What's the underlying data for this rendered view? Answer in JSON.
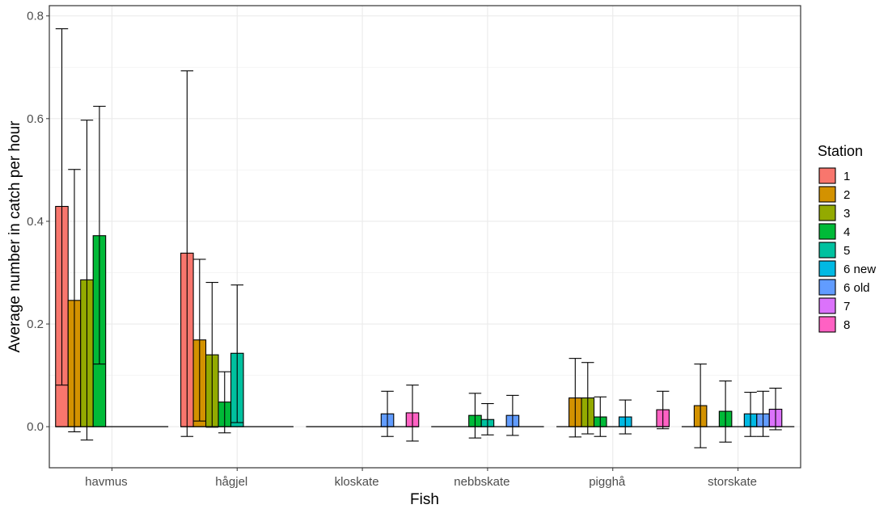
{
  "chart_data": {
    "type": "bar",
    "xlabel": "Fish",
    "ylabel": "Average number in catch per hour",
    "ylim": [
      -0.08,
      0.82
    ],
    "yticks": [
      "0.0",
      "0.2",
      "0.4",
      "0.6",
      "0.8"
    ],
    "ytick_values": [
      0,
      0.2,
      0.4,
      0.6,
      0.8
    ],
    "grid": true,
    "legend": {
      "title": "Station",
      "position": "right"
    },
    "categories": [
      "havmus",
      "hågjel",
      "kloskate",
      "nebbskate",
      "pigghå",
      "storskate"
    ],
    "series": [
      {
        "name": "1",
        "color": "#F8766D",
        "values": [
          0.429,
          0.338,
          0,
          0,
          0,
          0
        ],
        "lower": [
          0.081,
          -0.019,
          null,
          null,
          null,
          null
        ],
        "upper": [
          0.775,
          0.693,
          null,
          null,
          null,
          null
        ]
      },
      {
        "name": "2",
        "color": "#D39200",
        "values": [
          0.246,
          0.169,
          0,
          0,
          0.056,
          0.041
        ],
        "lower": [
          -0.01,
          0.011,
          null,
          null,
          -0.02,
          -0.041
        ],
        "upper": [
          0.501,
          0.326,
          null,
          null,
          0.133,
          0.122
        ]
      },
      {
        "name": "3",
        "color": "#93AA00",
        "values": [
          0.286,
          0.14,
          0,
          0,
          0.056,
          0
        ],
        "lower": [
          -0.026,
          -0.001,
          null,
          null,
          -0.014,
          null
        ],
        "upper": [
          0.597,
          0.281,
          null,
          null,
          0.125,
          null
        ]
      },
      {
        "name": "4",
        "color": "#00BA38",
        "values": [
          0.372,
          0.048,
          0,
          0.022,
          0.019,
          0.03
        ],
        "lower": [
          0.122,
          -0.012,
          null,
          -0.022,
          -0.019,
          -0.03
        ],
        "upper": [
          0.624,
          0.107,
          null,
          0.065,
          0.058,
          0.089
        ]
      },
      {
        "name": "5",
        "color": "#00C19F",
        "values": [
          0,
          0.143,
          0,
          0.014,
          0,
          0
        ],
        "lower": [
          null,
          0.008,
          null,
          -0.016,
          null,
          null
        ],
        "upper": [
          null,
          0.276,
          null,
          0.045,
          null,
          null
        ]
      },
      {
        "name": "6 new",
        "color": "#00B9E3",
        "values": [
          0,
          0,
          0,
          0,
          0.019,
          0.025
        ],
        "lower": [
          null,
          null,
          null,
          null,
          -0.014,
          -0.019
        ],
        "upper": [
          null,
          null,
          null,
          null,
          0.052,
          0.067
        ]
      },
      {
        "name": "6 old",
        "color": "#619CFF",
        "values": [
          0,
          0,
          0.025,
          0.022,
          0,
          0.025
        ],
        "lower": [
          null,
          null,
          -0.019,
          -0.017,
          null,
          -0.019
        ],
        "upper": [
          null,
          null,
          0.069,
          0.061,
          null,
          0.069
        ]
      },
      {
        "name": "7",
        "color": "#DB72FB",
        "values": [
          0,
          0,
          0,
          0,
          0,
          0.034
        ],
        "lower": [
          null,
          null,
          null,
          null,
          null,
          -0.006
        ],
        "upper": [
          null,
          null,
          null,
          null,
          null,
          0.075
        ]
      },
      {
        "name": "8",
        "color": "#FF61C3",
        "values": [
          0,
          0,
          0.027,
          0,
          0.033,
          0
        ],
        "lower": [
          null,
          null,
          -0.028,
          null,
          -0.004,
          null
        ],
        "upper": [
          null,
          null,
          0.081,
          null,
          0.069,
          null
        ]
      }
    ]
  }
}
